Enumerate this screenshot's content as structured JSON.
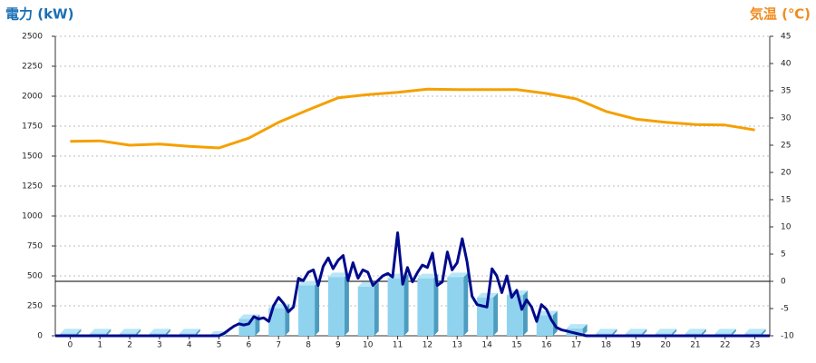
{
  "chart_data": {
    "type": "combo",
    "y_label": "電力 (kW)",
    "y2_label": "気温 (℃)",
    "categories": [
      "0",
      "1",
      "2",
      "3",
      "4",
      "5",
      "6",
      "7",
      "8",
      "9",
      "10",
      "11",
      "12",
      "13",
      "14",
      "15",
      "16",
      "17",
      "18",
      "19",
      "20",
      "21",
      "22",
      "23"
    ],
    "xlim": [
      -0.5,
      23.5
    ],
    "ylim": [
      0,
      2500
    ],
    "yticks": [
      0,
      250,
      500,
      750,
      1000,
      1250,
      1500,
      1750,
      2000,
      2250,
      2500
    ],
    "y2lim": [
      -10,
      45
    ],
    "y2ticks": [
      -10,
      -5,
      0,
      5,
      10,
      15,
      20,
      25,
      30,
      35,
      40,
      45
    ],
    "y2_reference_line": 0,
    "grid": true,
    "series": [
      {
        "type": "bar",
        "color": "#8fd3ee",
        "values": [
          20,
          20,
          20,
          20,
          20,
          0,
          140,
          230,
          420,
          490,
          410,
          480,
          480,
          490,
          320,
          340,
          170,
          60,
          20,
          20,
          20,
          20,
          20,
          20
        ]
      },
      {
        "type": "line",
        "color": "#000a8c",
        "x": [
          -0.5,
          5,
          5.17,
          5.33,
          5.5,
          5.67,
          5.83,
          6,
          6.17,
          6.33,
          6.5,
          6.67,
          6.83,
          7,
          7.17,
          7.33,
          7.5,
          7.67,
          7.83,
          8,
          8.17,
          8.33,
          8.5,
          8.67,
          8.83,
          9,
          9.17,
          9.33,
          9.5,
          9.67,
          9.83,
          10,
          10.17,
          10.33,
          10.5,
          10.67,
          10.83,
          11,
          11.17,
          11.33,
          11.5,
          11.67,
          11.83,
          12,
          12.17,
          12.33,
          12.5,
          12.67,
          12.83,
          13,
          13.17,
          13.33,
          13.5,
          13.67,
          13.83,
          14,
          14.17,
          14.33,
          14.5,
          14.67,
          14.83,
          15,
          15.17,
          15.33,
          15.5,
          15.67,
          15.83,
          16,
          16.17,
          16.33,
          16.5,
          16.67,
          16.83,
          17,
          17.17,
          17.33,
          17.5,
          23.5
        ],
        "values": [
          0,
          0,
          20,
          50,
          80,
          100,
          90,
          100,
          160,
          140,
          150,
          120,
          250,
          320,
          270,
          200,
          240,
          480,
          460,
          530,
          550,
          420,
          580,
          650,
          560,
          630,
          670,
          460,
          610,
          480,
          550,
          530,
          420,
          460,
          500,
          520,
          490,
          860,
          430,
          570,
          450,
          530,
          590,
          570,
          690,
          420,
          450,
          700,
          550,
          610,
          810,
          620,
          330,
          260,
          250,
          240,
          560,
          500,
          360,
          500,
          320,
          380,
          220,
          300,
          240,
          120,
          260,
          220,
          130,
          70,
          50,
          40,
          30,
          20,
          10,
          0,
          0,
          0
        ]
      },
      {
        "type": "line",
        "axis": "y2",
        "color": "#f5a000",
        "values": [
          25.7,
          25.8,
          25,
          25.2,
          24.8,
          24.5,
          26.3,
          29.2,
          31.5,
          33.7,
          34.3,
          34.7,
          35.3,
          35.2,
          35.2,
          35.2,
          34.5,
          33.5,
          31.2,
          29.8,
          29.2,
          28.8,
          28.7,
          27.8
        ]
      }
    ]
  }
}
